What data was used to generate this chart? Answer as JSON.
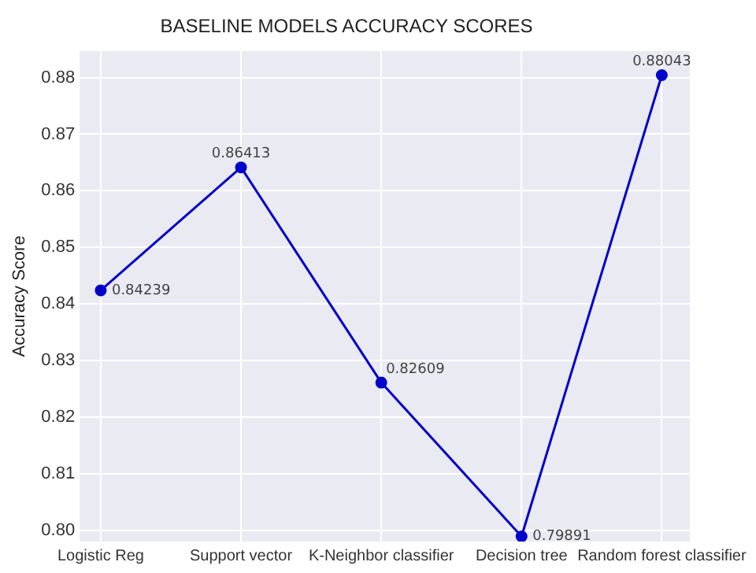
{
  "chart_data": {
    "type": "line",
    "title": "BASELINE MODELS ACCURACY SCORES",
    "ylabel": "Accuracy Score",
    "categories": [
      "Logistic Reg",
      "Support vector",
      "K-Neighbor classifier",
      "Decision tree",
      "Random forest classifier"
    ],
    "series": [
      {
        "color": "#0000cc",
        "values": [
          0.84239,
          0.86413,
          0.82609,
          0.79891,
          0.88043
        ]
      }
    ],
    "ylim": [
      0.798,
      0.8847
    ],
    "yticks": [
      {
        "value": 0.8,
        "label": "0.80"
      },
      {
        "value": 0.81,
        "label": "0.81"
      },
      {
        "value": 0.82,
        "label": "0.82"
      },
      {
        "value": 0.83,
        "label": "0.83"
      },
      {
        "value": 0.84,
        "label": "0.84"
      },
      {
        "value": 0.85,
        "label": "0.85"
      },
      {
        "value": 0.86,
        "label": "0.86"
      },
      {
        "value": 0.87,
        "label": "0.87"
      },
      {
        "value": 0.88,
        "label": "0.88"
      }
    ],
    "grid": true,
    "legend": false,
    "marker": "circle",
    "line_style": "solid",
    "data_labels": true
  }
}
